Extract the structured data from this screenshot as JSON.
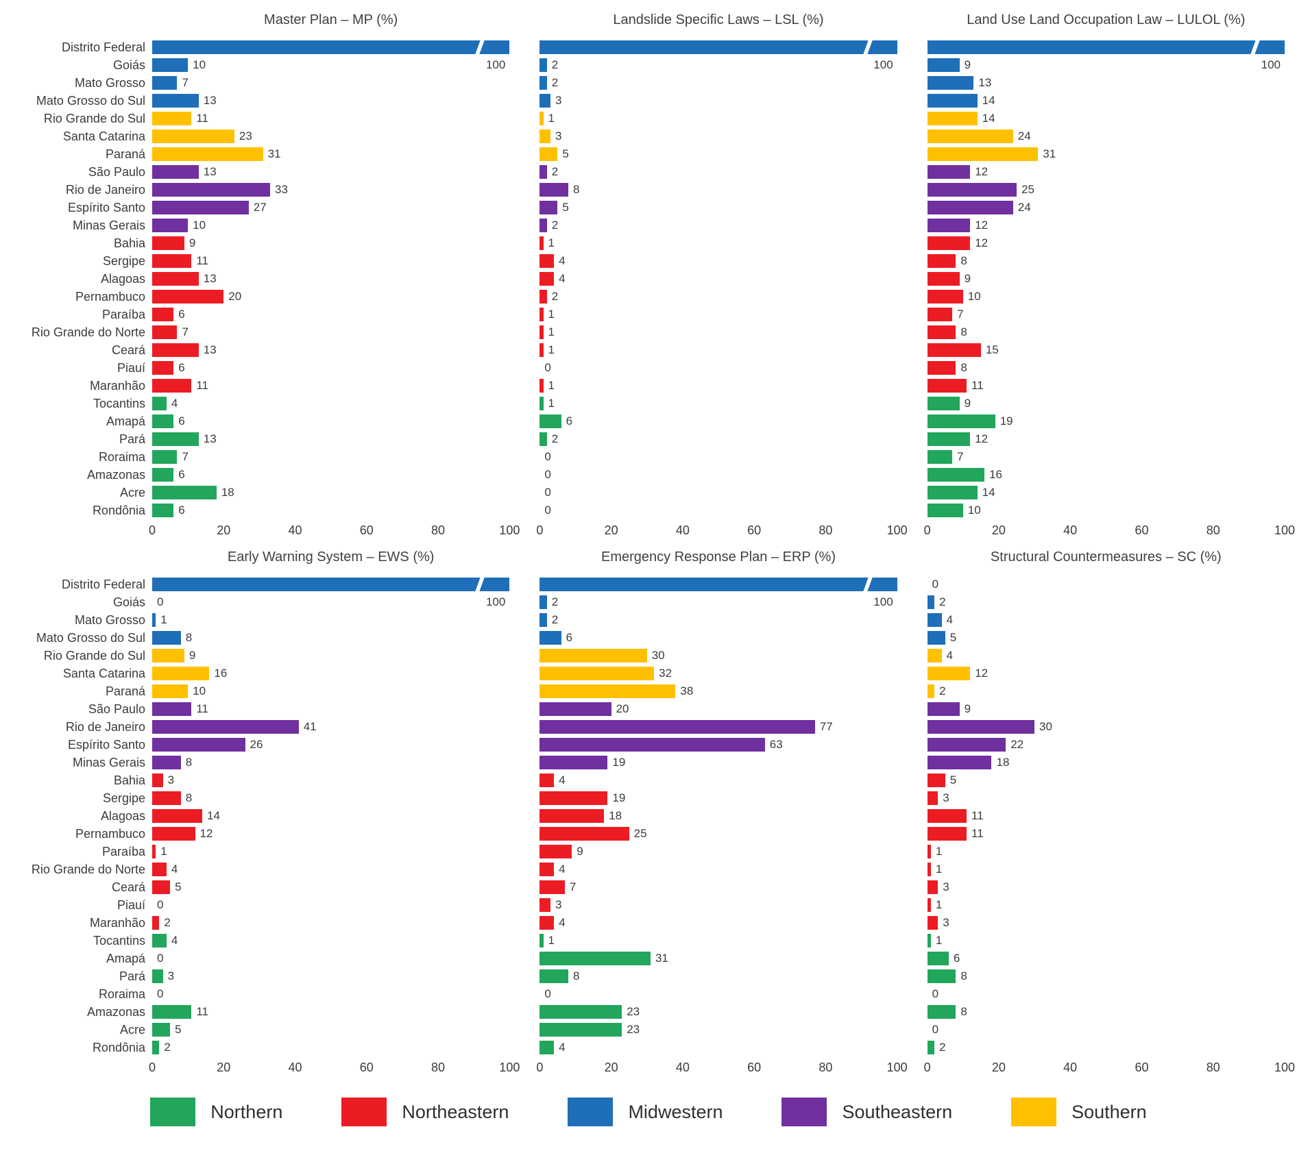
{
  "region_colors": {
    "northern": "#21A65B",
    "northeastern": "#EC1C24",
    "midwestern": "#1E6FB8",
    "southeastern": "#7030A0",
    "southern": "#FFC000"
  },
  "chart_data": {
    "type": "bar",
    "orientation": "horizontal",
    "xlim": [
      0,
      100
    ],
    "xticks": [
      0,
      20,
      40,
      60,
      80,
      100
    ],
    "categories": [
      "Distrito Federal",
      "Goiás",
      "Mato Grosso",
      "Mato Grosso do Sul",
      "Rio Grande do Sul",
      "Santa Catarina",
      "Paraná",
      "São Paulo",
      "Rio de Janeiro",
      "Espírito Santo",
      "Minas Gerais",
      "Bahia",
      "Sergipe",
      "Alagoas",
      "Pernambuco",
      "Paraíba",
      "Rio Grande do Norte",
      "Ceará",
      "Piauí",
      "Maranhão",
      "Tocantins",
      "Amapá",
      "Pará",
      "Roraima",
      "Amazonas",
      "Acre",
      "Rondônia"
    ],
    "state_regions": [
      "midwestern",
      "midwestern",
      "midwestern",
      "midwestern",
      "southern",
      "southern",
      "southern",
      "southeastern",
      "southeastern",
      "southeastern",
      "southeastern",
      "northeastern",
      "northeastern",
      "northeastern",
      "northeastern",
      "northeastern",
      "northeastern",
      "northeastern",
      "northeastern",
      "northeastern",
      "northern",
      "northern",
      "northern",
      "northern",
      "northern",
      "northern",
      "northern"
    ],
    "charts": [
      {
        "title": "Master Plan – MP (%)",
        "values": [
          100,
          10,
          7,
          13,
          11,
          23,
          31,
          13,
          33,
          27,
          10,
          9,
          11,
          13,
          20,
          6,
          7,
          13,
          6,
          11,
          4,
          6,
          13,
          7,
          6,
          18,
          6
        ]
      },
      {
        "title": "Landslide Specific Laws – LSL (%)",
        "values": [
          100,
          2,
          2,
          3,
          1,
          3,
          5,
          2,
          8,
          5,
          2,
          1,
          4,
          4,
          2,
          1,
          1,
          1,
          0,
          1,
          1,
          6,
          2,
          0,
          0,
          0,
          0
        ]
      },
      {
        "title": "Land Use Land Occupation Law – LULOL (%)",
        "values": [
          100,
          9,
          13,
          14,
          14,
          24,
          31,
          12,
          25,
          24,
          12,
          12,
          8,
          9,
          10,
          7,
          8,
          15,
          8,
          11,
          9,
          19,
          12,
          7,
          16,
          14,
          10
        ]
      },
      {
        "title": "Early Warning System – EWS (%)",
        "values": [
          100,
          0,
          1,
          8,
          9,
          16,
          10,
          11,
          41,
          26,
          8,
          3,
          8,
          14,
          12,
          1,
          4,
          5,
          0,
          2,
          4,
          0,
          3,
          0,
          11,
          5,
          2
        ]
      },
      {
        "title": "Emergency Response Plan – ERP (%)",
        "values": [
          100,
          2,
          2,
          6,
          30,
          32,
          38,
          20,
          77,
          63,
          19,
          4,
          19,
          18,
          25,
          9,
          4,
          7,
          3,
          4,
          1,
          31,
          8,
          0,
          23,
          23,
          4
        ]
      },
      {
        "title": "Structural Countermeasures – SC (%)",
        "values": [
          0,
          2,
          4,
          5,
          4,
          12,
          2,
          9,
          30,
          22,
          18,
          5,
          3,
          11,
          11,
          1,
          1,
          3,
          1,
          3,
          1,
          6,
          8,
          0,
          8,
          0,
          2
        ]
      }
    ],
    "legend": [
      {
        "label": "Northern",
        "region": "northern"
      },
      {
        "label": "Northeastern",
        "region": "northeastern"
      },
      {
        "label": "Midwestern",
        "region": "midwestern"
      },
      {
        "label": "Southeastern",
        "region": "southeastern"
      },
      {
        "label": "Southern",
        "region": "southern"
      }
    ]
  }
}
